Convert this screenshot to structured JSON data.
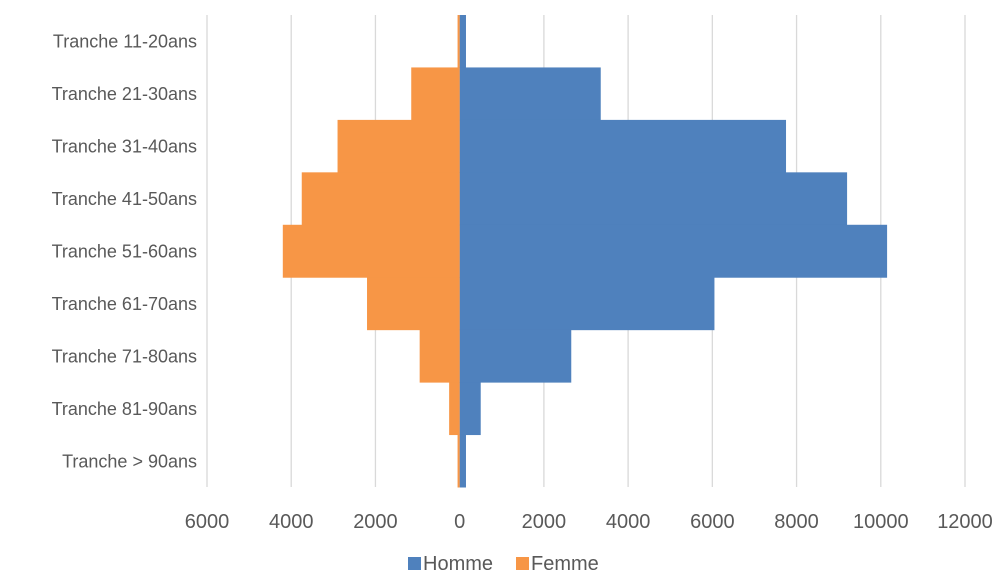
{
  "chart_data": {
    "type": "bar",
    "orientation": "horizontal",
    "variant": "population-pyramid",
    "categories": [
      "Tranche 11-20ans",
      "Tranche 21-30ans",
      "Tranche 31-40ans",
      "Tranche 41-50ans",
      "Tranche 51-60ans",
      "Tranche 61-70ans",
      "Tranche 71-80ans",
      "Tranche 81-90ans",
      "Tranche > 90ans"
    ],
    "series": [
      {
        "name": "Homme",
        "color": "#4f81bd",
        "values": [
          150,
          3350,
          7750,
          9200,
          10150,
          6050,
          2650,
          500,
          150
        ]
      },
      {
        "name": "Femme",
        "color": "#f79646",
        "direction": "left",
        "values": [
          50,
          1150,
          2900,
          3750,
          4200,
          2200,
          950,
          250,
          50
        ]
      }
    ],
    "x_ticks": [
      "6000",
      "4000",
      "2000",
      "0",
      "2000",
      "4000",
      "6000",
      "8000",
      "10000",
      "12000"
    ],
    "xlim": [
      -6000,
      12000
    ],
    "grid": true,
    "legend_position": "bottom",
    "title": "",
    "xlabel": "",
    "ylabel": ""
  }
}
